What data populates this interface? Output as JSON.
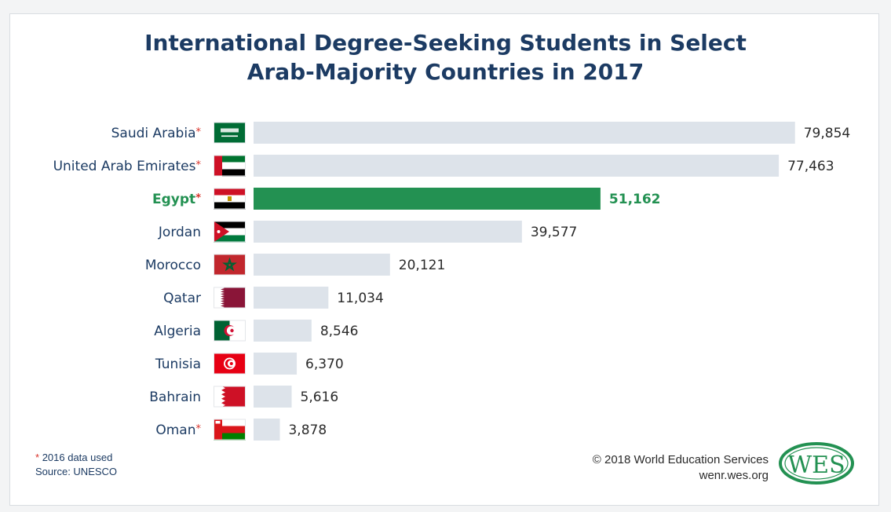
{
  "title_lines": [
    "International Degree-Seeking Students in Select",
    "Arab-Majority Countries in 2017"
  ],
  "footnote": "2016 data used",
  "footnote_marker": "*",
  "source": "Source: UNESCO",
  "copyright": "© 2018 World Education Services",
  "website": "wenr.wes.org",
  "logo_text": "WES",
  "colors": {
    "bar": "#dde3ea",
    "highlight_bar": "#239152",
    "highlight_text": "#239152",
    "label": "#1c3b63",
    "asterisk": "#d9342b",
    "value": "#2a2a2a",
    "logo": "#239152"
  },
  "chart_data": {
    "type": "bar",
    "orientation": "horizontal",
    "categories": [
      "Saudi Arabia",
      "United Arab Emirates",
      "Egypt",
      "Jordan",
      "Morocco",
      "Qatar",
      "Algeria",
      "Tunisia",
      "Bahrain",
      "Oman"
    ],
    "values": [
      79854,
      77463,
      51162,
      39577,
      20121,
      11034,
      8546,
      6370,
      5616,
      3878
    ],
    "value_labels": [
      "79,854",
      "77,463",
      "51,162",
      "39,577",
      "20,121",
      "11,034",
      "8,546",
      "6,370",
      "5,616",
      "3,878"
    ],
    "asterisk": [
      true,
      true,
      true,
      false,
      false,
      false,
      false,
      false,
      false,
      true
    ],
    "highlight_index": 2,
    "flags": [
      "saudi-arabia-flag-icon",
      "uae-flag-icon",
      "egypt-flag-icon",
      "jordan-flag-icon",
      "morocco-flag-icon",
      "qatar-flag-icon",
      "algeria-flag-icon",
      "tunisia-flag-icon",
      "bahrain-flag-icon",
      "oman-flag-icon"
    ],
    "xlim": [
      0,
      80000
    ],
    "grid": false,
    "legend": "none"
  }
}
